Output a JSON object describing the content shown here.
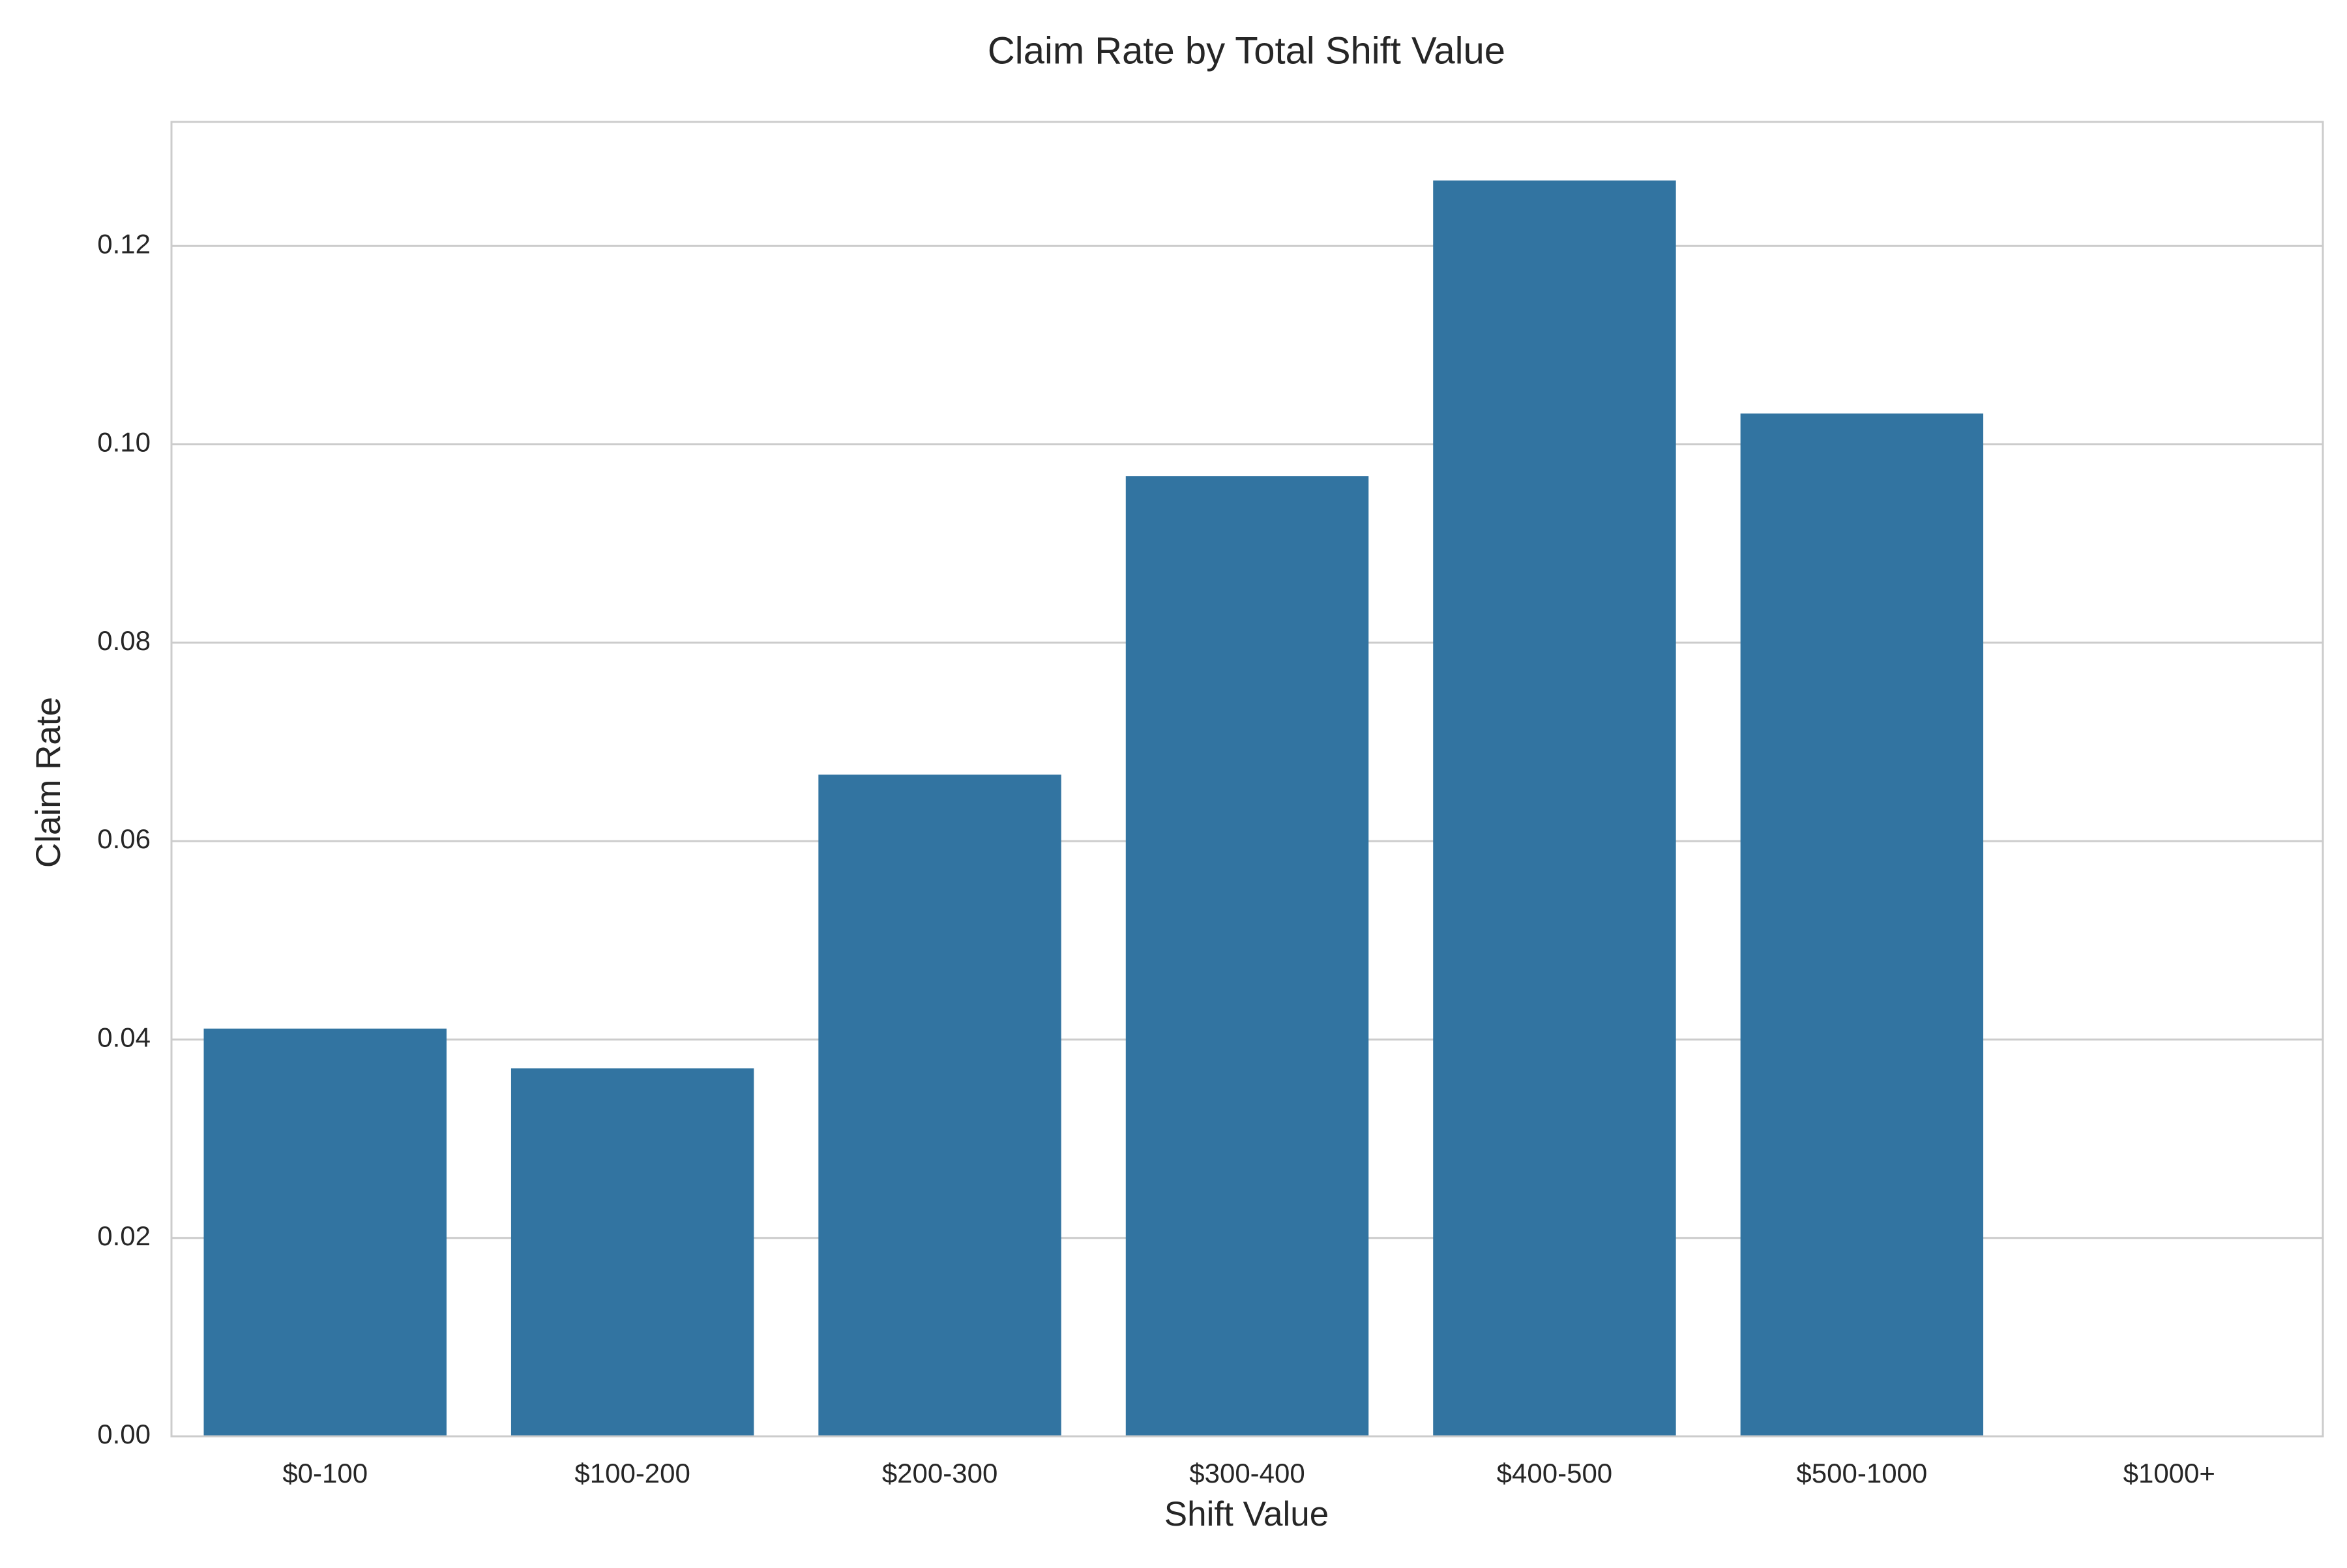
{
  "chart_data": {
    "type": "bar",
    "title": "Claim Rate by Total Shift Value",
    "xlabel": "Shift Value",
    "ylabel": "Claim Rate",
    "categories": [
      "$0-100",
      "$100-200",
      "$200-300",
      "$300-400",
      "$400-500",
      "$500-1000",
      "$1000+"
    ],
    "values": [
      0.0411,
      0.0371,
      0.0667,
      0.0968,
      0.1266,
      0.1031,
      0.0
    ],
    "ylim": [
      0,
      0.1325
    ],
    "yticks": [
      0.0,
      0.02,
      0.04,
      0.06,
      0.08,
      0.1,
      0.12
    ],
    "ytick_labels": [
      "0.00",
      "0.02",
      "0.04",
      "0.06",
      "0.08",
      "0.10",
      "0.12"
    ],
    "grid": "horizontal",
    "bar_color": "#3274a1",
    "grid_color": "#cccccc",
    "spine_color": "#cccccc"
  }
}
